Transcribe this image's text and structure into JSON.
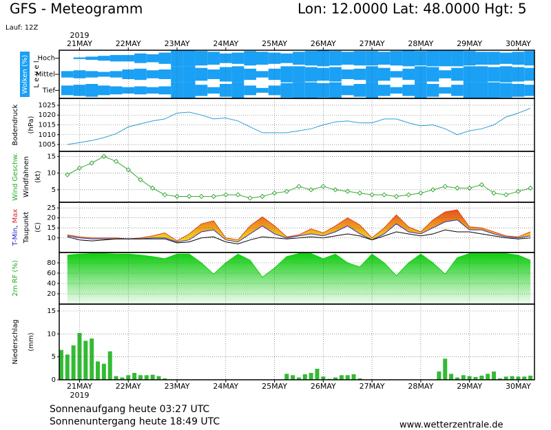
{
  "header": {
    "title": "GFS - Meteogramm",
    "location": "Lon: 12.0000 Lat: 48.0000 Hgt: 5",
    "run": "Lauf: 12Z"
  },
  "footer": {
    "sunrise": "Sonnenaufgang heute 03:27 UTC",
    "sunset": "Sonnenuntergang heute 18:49 UTC",
    "source": "www.wetterzentrale.de"
  },
  "time_axis": {
    "year": "2019",
    "xlim": [
      -10,
      224
    ],
    "xticks": [
      {
        "value": 0,
        "label": "21MAY"
      },
      {
        "value": 24,
        "label": "22MAY"
      },
      {
        "value": 48,
        "label": "23MAY"
      },
      {
        "value": 72,
        "label": "24MAY"
      },
      {
        "value": 96,
        "label": "25MAY"
      },
      {
        "value": 120,
        "label": "26MAY"
      },
      {
        "value": 144,
        "label": "27MAY"
      },
      {
        "value": 168,
        "label": "28MAY"
      },
      {
        "value": 192,
        "label": "29MAY"
      },
      {
        "value": 216,
        "label": "30MAY"
      }
    ]
  },
  "chart_data": [
    {
      "type": "clouds",
      "grid": true,
      "ylim": [
        0,
        100
      ],
      "ylabel": [
        [
          {
            "text": "Wolken (%)",
            "color": "#ffffff"
          }
        ],
        [
          {
            "text": "L e v e l",
            "color": "#000000"
          }
        ]
      ],
      "x": [
        -6,
        0,
        6,
        12,
        18,
        24,
        30,
        36,
        42,
        48,
        54,
        60,
        66,
        72,
        78,
        84,
        90,
        96,
        102,
        108,
        114,
        120,
        126,
        132,
        138,
        144,
        150,
        156,
        162,
        168,
        174,
        180,
        186,
        192,
        198,
        204,
        210,
        216,
        222
      ],
      "series": [
        {
          "name": "Hoch",
          "color": "#1aa0f4",
          "values": [
            0,
            10,
            20,
            30,
            40,
            40,
            60,
            50,
            70,
            100,
            100,
            90,
            80,
            60,
            70,
            90,
            80,
            70,
            60,
            80,
            90,
            100,
            90,
            80,
            90,
            90,
            80,
            90,
            100,
            90,
            100,
            100,
            100,
            90,
            80,
            80,
            70,
            80,
            90
          ]
        },
        {
          "name": "Mittel",
          "color": "#1aa0f4",
          "values": [
            40,
            50,
            40,
            30,
            40,
            60,
            70,
            50,
            60,
            100,
            100,
            80,
            60,
            90,
            100,
            70,
            40,
            70,
            100,
            100,
            90,
            80,
            90,
            60,
            70,
            100,
            80,
            40,
            70,
            100,
            90,
            50,
            80,
            100,
            100,
            90,
            100,
            90,
            80
          ]
        },
        {
          "name": "Tief",
          "color": "#1aa0f4",
          "values": [
            60,
            70,
            80,
            60,
            50,
            40,
            50,
            40,
            50,
            100,
            100,
            70,
            40,
            80,
            100,
            60,
            30,
            60,
            90,
            100,
            100,
            90,
            100,
            60,
            80,
            100,
            70,
            40,
            70,
            100,
            80,
            40,
            70,
            100,
            100,
            100,
            90,
            80,
            70
          ]
        }
      ]
    },
    {
      "type": "line",
      "grid": true,
      "ylim": [
        1001.5,
        1028.5
      ],
      "yticks": [
        1005,
        1010,
        1015,
        1020,
        1025
      ],
      "ylabel": [
        [
          {
            "text": "Bodendruck",
            "color": "#000000"
          }
        ],
        [
          {
            "text": "(hPa)",
            "color": "#000000"
          }
        ]
      ],
      "x": [
        -6,
        0,
        6,
        12,
        18,
        24,
        30,
        36,
        42,
        48,
        54,
        60,
        66,
        72,
        78,
        84,
        90,
        96,
        102,
        108,
        114,
        120,
        126,
        132,
        138,
        144,
        150,
        156,
        162,
        168,
        174,
        180,
        186,
        192,
        198,
        204,
        210,
        216,
        222
      ],
      "series": [
        {
          "color": "#2a9fd6",
          "values": [
            1005,
            1006,
            1007,
            1008.5,
            1010.5,
            1014,
            1015.5,
            1017,
            1018,
            1021,
            1021.5,
            1020,
            1018,
            1018.5,
            1017,
            1014,
            1011,
            1011,
            1011,
            1012,
            1013,
            1015,
            1016.5,
            1017,
            1016,
            1016,
            1018,
            1018,
            1016,
            1014.5,
            1015,
            1013,
            1010,
            1012,
            1013,
            1015,
            1019,
            1021,
            1023.5
          ]
        }
      ]
    },
    {
      "type": "line",
      "grid": true,
      "markers": true,
      "ylim": [
        1.25,
        16.5
      ],
      "yticks": [
        5,
        10,
        15
      ],
      "ylabel": [
        [
          {
            "text": "Wind Geschw.",
            "color": "#22aa22"
          }
        ],
        [
          {
            "text": "Windfahnen",
            "color": "#000000"
          }
        ],
        [
          {
            "text": "(kt)",
            "color": "#000000"
          }
        ]
      ],
      "x": [
        -6,
        0,
        6,
        12,
        18,
        24,
        30,
        36,
        42,
        48,
        54,
        60,
        66,
        72,
        78,
        84,
        90,
        96,
        102,
        108,
        114,
        120,
        126,
        132,
        138,
        144,
        150,
        156,
        162,
        168,
        174,
        180,
        186,
        192,
        198,
        204,
        210,
        216,
        222
      ],
      "series": [
        {
          "color": "#33aa33",
          "values": [
            9.5,
            11.5,
            13,
            15,
            13.5,
            11,
            8,
            5.5,
            3.5,
            3,
            3,
            3,
            3,
            3.5,
            3.5,
            2.5,
            3,
            4,
            4.5,
            6,
            5,
            6,
            5,
            4.5,
            4,
            3.5,
            3.5,
            3,
            3.5,
            4,
            5,
            6,
            5.5,
            5.5,
            6.5,
            4,
            3.5,
            4.5,
            5.5
          ]
        }
      ]
    },
    {
      "type": "band",
      "grid": true,
      "ylim": [
        2.7,
        27.8
      ],
      "yticks": [
        10,
        15,
        20,
        25
      ],
      "band_colors": [
        "#e8501e",
        "#f2e21e"
      ],
      "ylabel": [
        [
          {
            "text": "T-Min",
            "color": "#2020c0"
          },
          {
            "text": ", ",
            "color": "#000000"
          },
          {
            "text": "Max",
            "color": "#e02020"
          }
        ],
        [
          {
            "text": "Taupunkt",
            "color": "#000000"
          }
        ],
        [
          {
            "text": "(C)",
            "color": "#000000"
          }
        ]
      ],
      "x": [
        -6,
        0,
        6,
        12,
        18,
        24,
        30,
        36,
        42,
        48,
        54,
        60,
        66,
        72,
        78,
        84,
        90,
        96,
        102,
        108,
        114,
        120,
        126,
        132,
        138,
        144,
        150,
        156,
        162,
        168,
        174,
        180,
        186,
        192,
        198,
        204,
        210,
        216,
        222
      ],
      "series": [
        {
          "color": "#e0401c",
          "values": [
            11.5,
            10.5,
            10,
            10,
            10,
            9.5,
            10,
            11,
            12.5,
            8.5,
            12,
            17,
            18.5,
            10,
            9,
            16,
            20.5,
            16,
            10.5,
            11.5,
            14.5,
            12.5,
            16,
            20,
            16.5,
            10,
            15,
            21.5,
            15.5,
            13,
            19,
            23,
            24,
            15.5,
            15,
            13,
            11,
            10.5,
            13
          ]
        },
        {
          "color": "#3030c0",
          "values": [
            11,
            10,
            9.5,
            9.5,
            9.5,
            9.5,
            9.5,
            10,
            10,
            8,
            9,
            13,
            14,
            9,
            8,
            12,
            16,
            12,
            10,
            11,
            12,
            11,
            13,
            16,
            12,
            9,
            12,
            17,
            13,
            12,
            15,
            18,
            19,
            14,
            14,
            12,
            10.5,
            10,
            11
          ]
        },
        {
          "color": "#000000",
          "values": [
            10.5,
            9,
            8.5,
            9,
            9.5,
            9.5,
            9.5,
            9.5,
            9.5,
            7.5,
            8,
            10,
            10.5,
            8,
            7,
            9,
            10.5,
            10,
            9.5,
            10,
            10.5,
            10,
            11,
            12,
            11,
            9,
            11,
            13,
            12,
            11,
            12,
            14,
            13,
            13,
            12,
            11,
            10,
            9.5,
            10
          ]
        }
      ]
    },
    {
      "type": "area",
      "grid": true,
      "ylim": [
        0,
        100
      ],
      "yticks": [
        20,
        40,
        60,
        80
      ],
      "ylabel": [
        [
          {
            "text": "2m RF (%)",
            "color": "#22aa22"
          }
        ]
      ],
      "x": [
        -6,
        0,
        6,
        12,
        18,
        24,
        30,
        36,
        42,
        48,
        54,
        60,
        66,
        72,
        78,
        84,
        90,
        96,
        102,
        108,
        114,
        120,
        126,
        132,
        138,
        144,
        150,
        156,
        162,
        168,
        174,
        180,
        186,
        192,
        198,
        204,
        210,
        216,
        222
      ],
      "series": [
        {
          "color": "#11cc11",
          "values": [
            95,
            97,
            98,
            98,
            97,
            97,
            95,
            92,
            88,
            97,
            97,
            80,
            58,
            80,
            97,
            85,
            52,
            70,
            92,
            98,
            98,
            88,
            97,
            80,
            72,
            97,
            80,
            55,
            80,
            97,
            80,
            58,
            90,
            98,
            98,
            98,
            98,
            95,
            85
          ]
        }
      ]
    },
    {
      "type": "bar",
      "grid": true,
      "ylim": [
        0,
        16.5
      ],
      "yticks": [
        0,
        5,
        10,
        15
      ],
      "ylabel": [
        [
          {
            "text": "Niederschlag",
            "color": "#000000"
          }
        ],
        [
          {
            "text": "(mm)",
            "color": "#000000"
          }
        ]
      ],
      "x": [
        -9,
        -6,
        -3,
        0,
        3,
        6,
        9,
        12,
        15,
        18,
        21,
        24,
        27,
        30,
        33,
        36,
        39,
        42,
        45,
        48,
        51,
        54,
        57,
        60,
        63,
        66,
        69,
        72,
        75,
        78,
        81,
        84,
        87,
        90,
        93,
        96,
        99,
        102,
        105,
        108,
        111,
        114,
        117,
        120,
        123,
        126,
        129,
        132,
        135,
        138,
        141,
        144,
        147,
        150,
        153,
        156,
        159,
        162,
        165,
        168,
        171,
        174,
        177,
        180,
        183,
        186,
        189,
        192,
        195,
        198,
        201,
        204,
        207,
        210,
        213,
        216,
        219,
        222
      ],
      "series": [
        {
          "color": "#33bb33",
          "values": [
            6.5,
            5.5,
            7.5,
            10.2,
            8.5,
            9,
            4,
            3.5,
            6.2,
            0.8,
            0.5,
            1,
            1.5,
            1,
            1,
            1.1,
            0.8,
            0.3,
            0.1,
            0,
            0,
            0,
            0.1,
            0,
            0,
            0,
            0,
            0,
            0,
            0,
            0,
            0,
            0,
            0,
            0,
            0,
            0,
            1.3,
            1,
            0.5,
            1.2,
            1.5,
            2.4,
            0.7,
            0.2,
            0.5,
            1,
            1,
            1.2,
            0.3,
            0,
            0,
            0,
            0,
            0,
            0,
            0,
            0,
            0,
            0,
            0,
            0,
            1.8,
            4.6,
            1.3,
            0.5,
            1,
            0.8,
            0.6,
            0.9,
            1.3,
            1.8,
            0.3,
            0.7,
            0.8,
            0.7,
            0.7,
            0.9
          ]
        }
      ]
    }
  ]
}
